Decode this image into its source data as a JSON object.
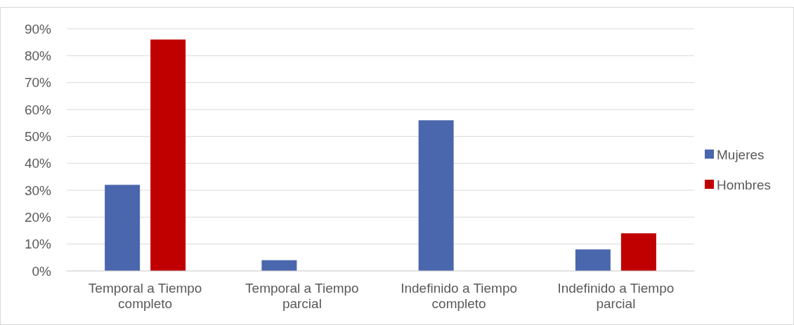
{
  "chart_data": {
    "type": "bar",
    "categories": [
      "Temporal a Tiempo completo",
      "Temporal a Tiempo parcial",
      "Indefinido a Tiempo completo",
      "Indefinido a Tiempo parcial"
    ],
    "series": [
      {
        "name": "Mujeres",
        "color": "#4a66ac",
        "values": [
          32,
          4,
          56,
          8
        ]
      },
      {
        "name": "Hombres",
        "color": "#c00000",
        "values": [
          86,
          0,
          0,
          14
        ]
      }
    ],
    "ylim": [
      0,
      90
    ],
    "yticks": [
      {
        "value": 0,
        "label": "0%"
      },
      {
        "value": 10,
        "label": "10%"
      },
      {
        "value": 20,
        "label": "20%"
      },
      {
        "value": 30,
        "label": "30%"
      },
      {
        "value": 40,
        "label": "40%"
      },
      {
        "value": 50,
        "label": "50%"
      },
      {
        "value": 60,
        "label": "60%"
      },
      {
        "value": 70,
        "label": "70%"
      },
      {
        "value": 80,
        "label": "80%"
      },
      {
        "value": 90,
        "label": "90%"
      }
    ],
    "grid": "y",
    "legend": "right"
  }
}
